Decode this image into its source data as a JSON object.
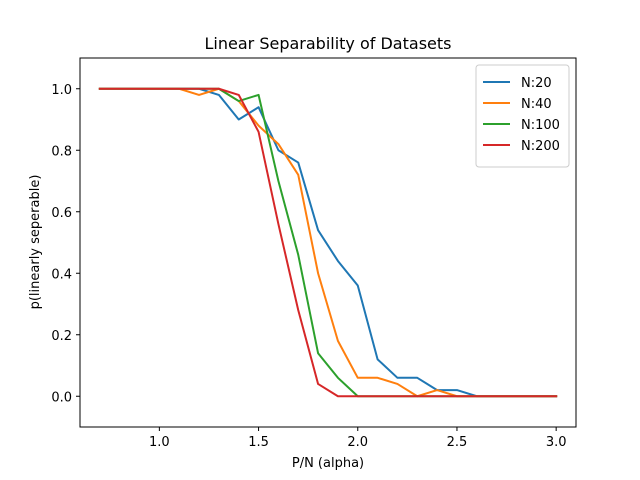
{
  "chart_data": {
    "type": "line",
    "title": "Linear Separability of Datasets",
    "xlabel": "P/N (alpha)",
    "ylabel": "p(linearly seperable)",
    "xlim": [
      0.6,
      3.1
    ],
    "ylim": [
      -0.1,
      1.1
    ],
    "xticks": [
      1.0,
      1.5,
      2.0,
      2.5,
      3.0
    ],
    "xtick_labels": [
      "1.0",
      "1.5",
      "2.0",
      "2.5",
      "3.0"
    ],
    "yticks": [
      0.0,
      0.2,
      0.4,
      0.6,
      0.8,
      1.0
    ],
    "ytick_labels": [
      "0.0",
      "0.2",
      "0.4",
      "0.6",
      "0.8",
      "1.0"
    ],
    "grid": false,
    "legend_position": "top-right",
    "x": [
      0.7,
      0.8,
      0.9,
      1.0,
      1.1,
      1.2,
      1.3,
      1.4,
      1.5,
      1.6,
      1.7,
      1.8,
      1.9,
      2.0,
      2.1,
      2.2,
      2.3,
      2.4,
      2.5,
      2.6,
      2.7,
      2.8,
      2.9,
      3.0
    ],
    "series": [
      {
        "name": "N:20",
        "color": "#1f77b4",
        "values": [
          1.0,
          1.0,
          1.0,
          1.0,
          1.0,
          1.0,
          0.98,
          0.9,
          0.94,
          0.8,
          0.76,
          0.54,
          0.44,
          0.36,
          0.12,
          0.06,
          0.06,
          0.02,
          0.02,
          0.0,
          0.0,
          0.0,
          0.0,
          0.0
        ]
      },
      {
        "name": "N:40",
        "color": "#ff7f0e",
        "values": [
          1.0,
          1.0,
          1.0,
          1.0,
          1.0,
          0.98,
          1.0,
          0.96,
          0.88,
          0.82,
          0.72,
          0.4,
          0.18,
          0.06,
          0.06,
          0.04,
          0.0,
          0.02,
          0.0,
          0.0,
          0.0,
          0.0,
          0.0,
          0.0
        ]
      },
      {
        "name": "N:100",
        "color": "#2ca02c",
        "values": [
          1.0,
          1.0,
          1.0,
          1.0,
          1.0,
          1.0,
          1.0,
          0.96,
          0.98,
          0.7,
          0.46,
          0.14,
          0.06,
          0.0,
          0.0,
          0.0,
          0.0,
          0.0,
          0.0,
          0.0,
          0.0,
          0.0,
          0.0,
          0.0
        ]
      },
      {
        "name": "N:200",
        "color": "#d62728",
        "values": [
          1.0,
          1.0,
          1.0,
          1.0,
          1.0,
          1.0,
          1.0,
          0.98,
          0.86,
          0.56,
          0.28,
          0.04,
          0.0,
          0.0,
          0.0,
          0.0,
          0.0,
          0.0,
          0.0,
          0.0,
          0.0,
          0.0,
          0.0,
          0.0
        ]
      }
    ]
  }
}
